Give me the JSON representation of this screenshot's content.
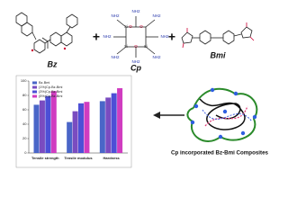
{
  "molecules": {
    "bz_label": "Bz",
    "cp_label": "Cp",
    "bmi_label": "Bmi",
    "plus": [
      "+",
      "+"
    ],
    "cp_groups": [
      "NH2",
      "NH2",
      "NH2",
      "NH2",
      "NH2",
      "NH2",
      "NH2",
      "NH2"
    ],
    "cp_core": [
      "O",
      "Si",
      "O",
      "Si",
      "O",
      "Si"
    ]
  },
  "chart_data": {
    "type": "bar",
    "categories": [
      "Tensile strength",
      "Tensile modulus",
      "Hardness"
    ],
    "series": [
      {
        "name": "Bz-Bmi",
        "color": "#4a66c8",
        "values": [
          67,
          43,
          72
        ]
      },
      {
        "name": "(1%)Cp-Bz-Bmi",
        "color": "#7a4cc0",
        "values": [
          73,
          58,
          77
        ]
      },
      {
        "name": "(3%)Cp-Bz-Bmi",
        "color": "#4d4fd6",
        "values": [
          79,
          69,
          83
        ]
      },
      {
        "name": "(5%)Cp-Bz-Bmi",
        "color": "#d03cc0",
        "values": [
          86,
          71,
          90
        ]
      }
    ],
    "ylim": [
      0,
      100
    ],
    "yticks": [
      0,
      20,
      40,
      60,
      80,
      100
    ],
    "legend": "top-left"
  },
  "composite_label": "Cp incorporated Bz-Bmi Composites"
}
